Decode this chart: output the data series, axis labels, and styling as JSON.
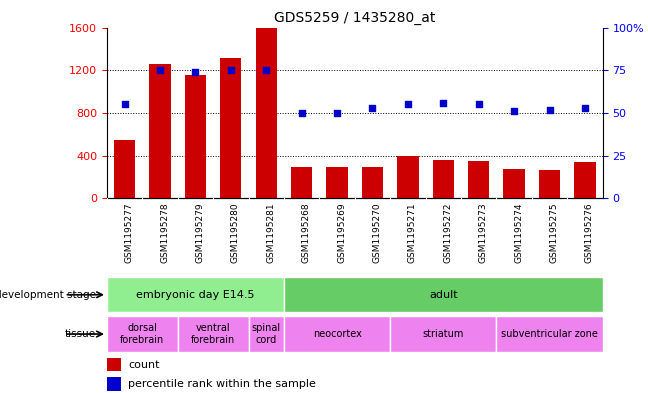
{
  "title": "GDS5259 / 1435280_at",
  "samples": [
    "GSM1195277",
    "GSM1195278",
    "GSM1195279",
    "GSM1195280",
    "GSM1195281",
    "GSM1195268",
    "GSM1195269",
    "GSM1195270",
    "GSM1195271",
    "GSM1195272",
    "GSM1195273",
    "GSM1195274",
    "GSM1195275",
    "GSM1195276"
  ],
  "counts": [
    550,
    1260,
    1155,
    1310,
    1600,
    290,
    290,
    290,
    400,
    360,
    355,
    275,
    270,
    340
  ],
  "percentiles": [
    55,
    75,
    74,
    75,
    75,
    50,
    50,
    53,
    55,
    56,
    55,
    51,
    52,
    53
  ],
  "bar_color": "#cc0000",
  "dot_color": "#0000cc",
  "ylim_left": [
    0,
    1600
  ],
  "ylim_right": [
    0,
    100
  ],
  "yticks_left": [
    0,
    400,
    800,
    1200,
    1600
  ],
  "yticks_right": [
    0,
    25,
    50,
    75,
    100
  ],
  "yticklabels_right": [
    "0",
    "25",
    "50",
    "75",
    "100%"
  ],
  "dev_stage_groups": [
    {
      "label": "embryonic day E14.5",
      "start": 0,
      "end": 5,
      "color": "#90ee90"
    },
    {
      "label": "adult",
      "start": 5,
      "end": 14,
      "color": "#66cc66"
    }
  ],
  "tissue_groups": [
    {
      "label": "dorsal\nforebrain",
      "start": 0,
      "end": 2,
      "color": "#ee82ee"
    },
    {
      "label": "ventral\nforebrain",
      "start": 2,
      "end": 4,
      "color": "#ee82ee"
    },
    {
      "label": "spinal\ncord",
      "start": 4,
      "end": 5,
      "color": "#ee82ee"
    },
    {
      "label": "neocortex",
      "start": 5,
      "end": 8,
      "color": "#ee82ee"
    },
    {
      "label": "striatum",
      "start": 8,
      "end": 11,
      "color": "#ee82ee"
    },
    {
      "label": "subventricular zone",
      "start": 11,
      "end": 14,
      "color": "#ee82ee"
    }
  ],
  "legend_count_color": "#cc0000",
  "legend_dot_color": "#0000cc",
  "chart_bg": "#ffffff",
  "xtick_bg": "#d3d3d3",
  "row_bg": "#d3d3d3",
  "grid_color": "black",
  "dot_size": 25
}
